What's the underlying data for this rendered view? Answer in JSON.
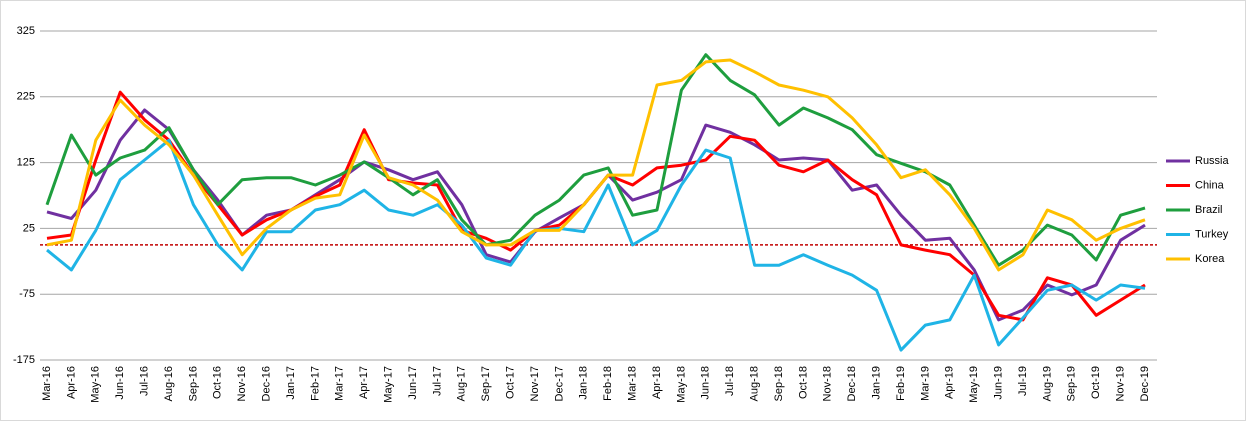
{
  "chart_data": {
    "type": "line",
    "categories": [
      "Mar-16",
      "Apr-16",
      "May-16",
      "Jun-16",
      "Jul-16",
      "Aug-16",
      "Sep-16",
      "Oct-16",
      "Nov-16",
      "Dec-16",
      "Jan-17",
      "Feb-17",
      "Mar-17",
      "Apr-17",
      "May-17",
      "Jun-17",
      "Jul-17",
      "Aug-17",
      "Sep-17",
      "Oct-17",
      "Nov-17",
      "Dec-17",
      "Jan-18",
      "Feb-18",
      "Mar-18",
      "Apr-18",
      "May-18",
      "Jun-18",
      "Jul-18",
      "Aug-18",
      "Sep-18",
      "Oct-18",
      "Nov-18",
      "Dec-18",
      "Jan-19",
      "Feb-19",
      "Mar-19",
      "Apr-19",
      "May-19",
      "Jun-19",
      "Jul-19",
      "Aug-19",
      "Sep-19",
      "Oct-19",
      "Nov-19",
      "Dec-19"
    ],
    "series": [
      {
        "name": "Russia",
        "color": "#7030a0",
        "values": [
          50,
          40,
          83,
          159,
          205,
          175,
          114,
          68,
          15,
          45,
          53,
          76,
          99,
          126,
          114,
          99,
          111,
          61,
          -15,
          -26,
          20,
          41,
          61,
          106,
          68,
          80,
          99,
          182,
          171,
          152,
          129,
          132,
          129,
          83,
          91,
          45,
          7,
          10,
          -38,
          -114,
          -99,
          -61,
          -76,
          -61,
          7,
          30
        ]
      },
      {
        "name": "China",
        "color": "#ff0000",
        "values": [
          10,
          15,
          129,
          232,
          190,
          159,
          106,
          61,
          15,
          38,
          53,
          74,
          91,
          175,
          99,
          94,
          91,
          22,
          10,
          -8,
          22,
          30,
          61,
          106,
          91,
          117,
          121,
          129,
          165,
          159,
          121,
          111,
          129,
          99,
          76,
          0,
          -8,
          -15,
          -46,
          -107,
          -114,
          -50,
          -61,
          -107,
          -84,
          -61
        ]
      },
      {
        "name": "Brazil",
        "color": "#1e9e3e",
        "values": [
          61,
          167,
          106,
          132,
          144,
          178,
          114,
          61,
          99,
          102,
          102,
          91,
          106,
          126,
          102,
          76,
          99,
          38,
          0,
          7,
          45,
          68,
          106,
          117,
          45,
          53,
          235,
          289,
          250,
          228,
          182,
          208,
          193,
          175,
          137,
          124,
          111,
          91,
          30,
          -31,
          -8,
          30,
          15,
          -23,
          45,
          56
        ]
      },
      {
        "name": "Turkey",
        "color": "#1fb4e6",
        "values": [
          -8,
          -38,
          22,
          99,
          129,
          159,
          61,
          0,
          -38,
          20,
          20,
          53,
          61,
          83,
          53,
          45,
          61,
          30,
          -20,
          -31,
          22,
          25,
          20,
          91,
          0,
          22,
          91,
          144,
          132,
          -31,
          -31,
          -15,
          -31,
          -46,
          -69,
          -160,
          -122,
          -114,
          -46,
          -152,
          -111,
          -69,
          -61,
          -84,
          -61,
          -66
        ]
      },
      {
        "name": "Korea",
        "color": "#ffc000",
        "values": [
          0,
          7,
          159,
          220,
          182,
          152,
          106,
          45,
          -15,
          25,
          53,
          71,
          76,
          167,
          102,
          91,
          68,
          20,
          0,
          0,
          22,
          22,
          61,
          106,
          106,
          243,
          250,
          278,
          281,
          263,
          243,
          235,
          225,
          193,
          152,
          102,
          114,
          76,
          25,
          -38,
          -15,
          53,
          38,
          7,
          25,
          38
        ]
      }
    ],
    "ylim": [
      -175,
      325
    ],
    "yticks": [
      -175,
      -75,
      25,
      125,
      225,
      325
    ],
    "grid": true,
    "reference_line": {
      "value": 0,
      "color": "#c00000"
    },
    "legend": "right"
  }
}
